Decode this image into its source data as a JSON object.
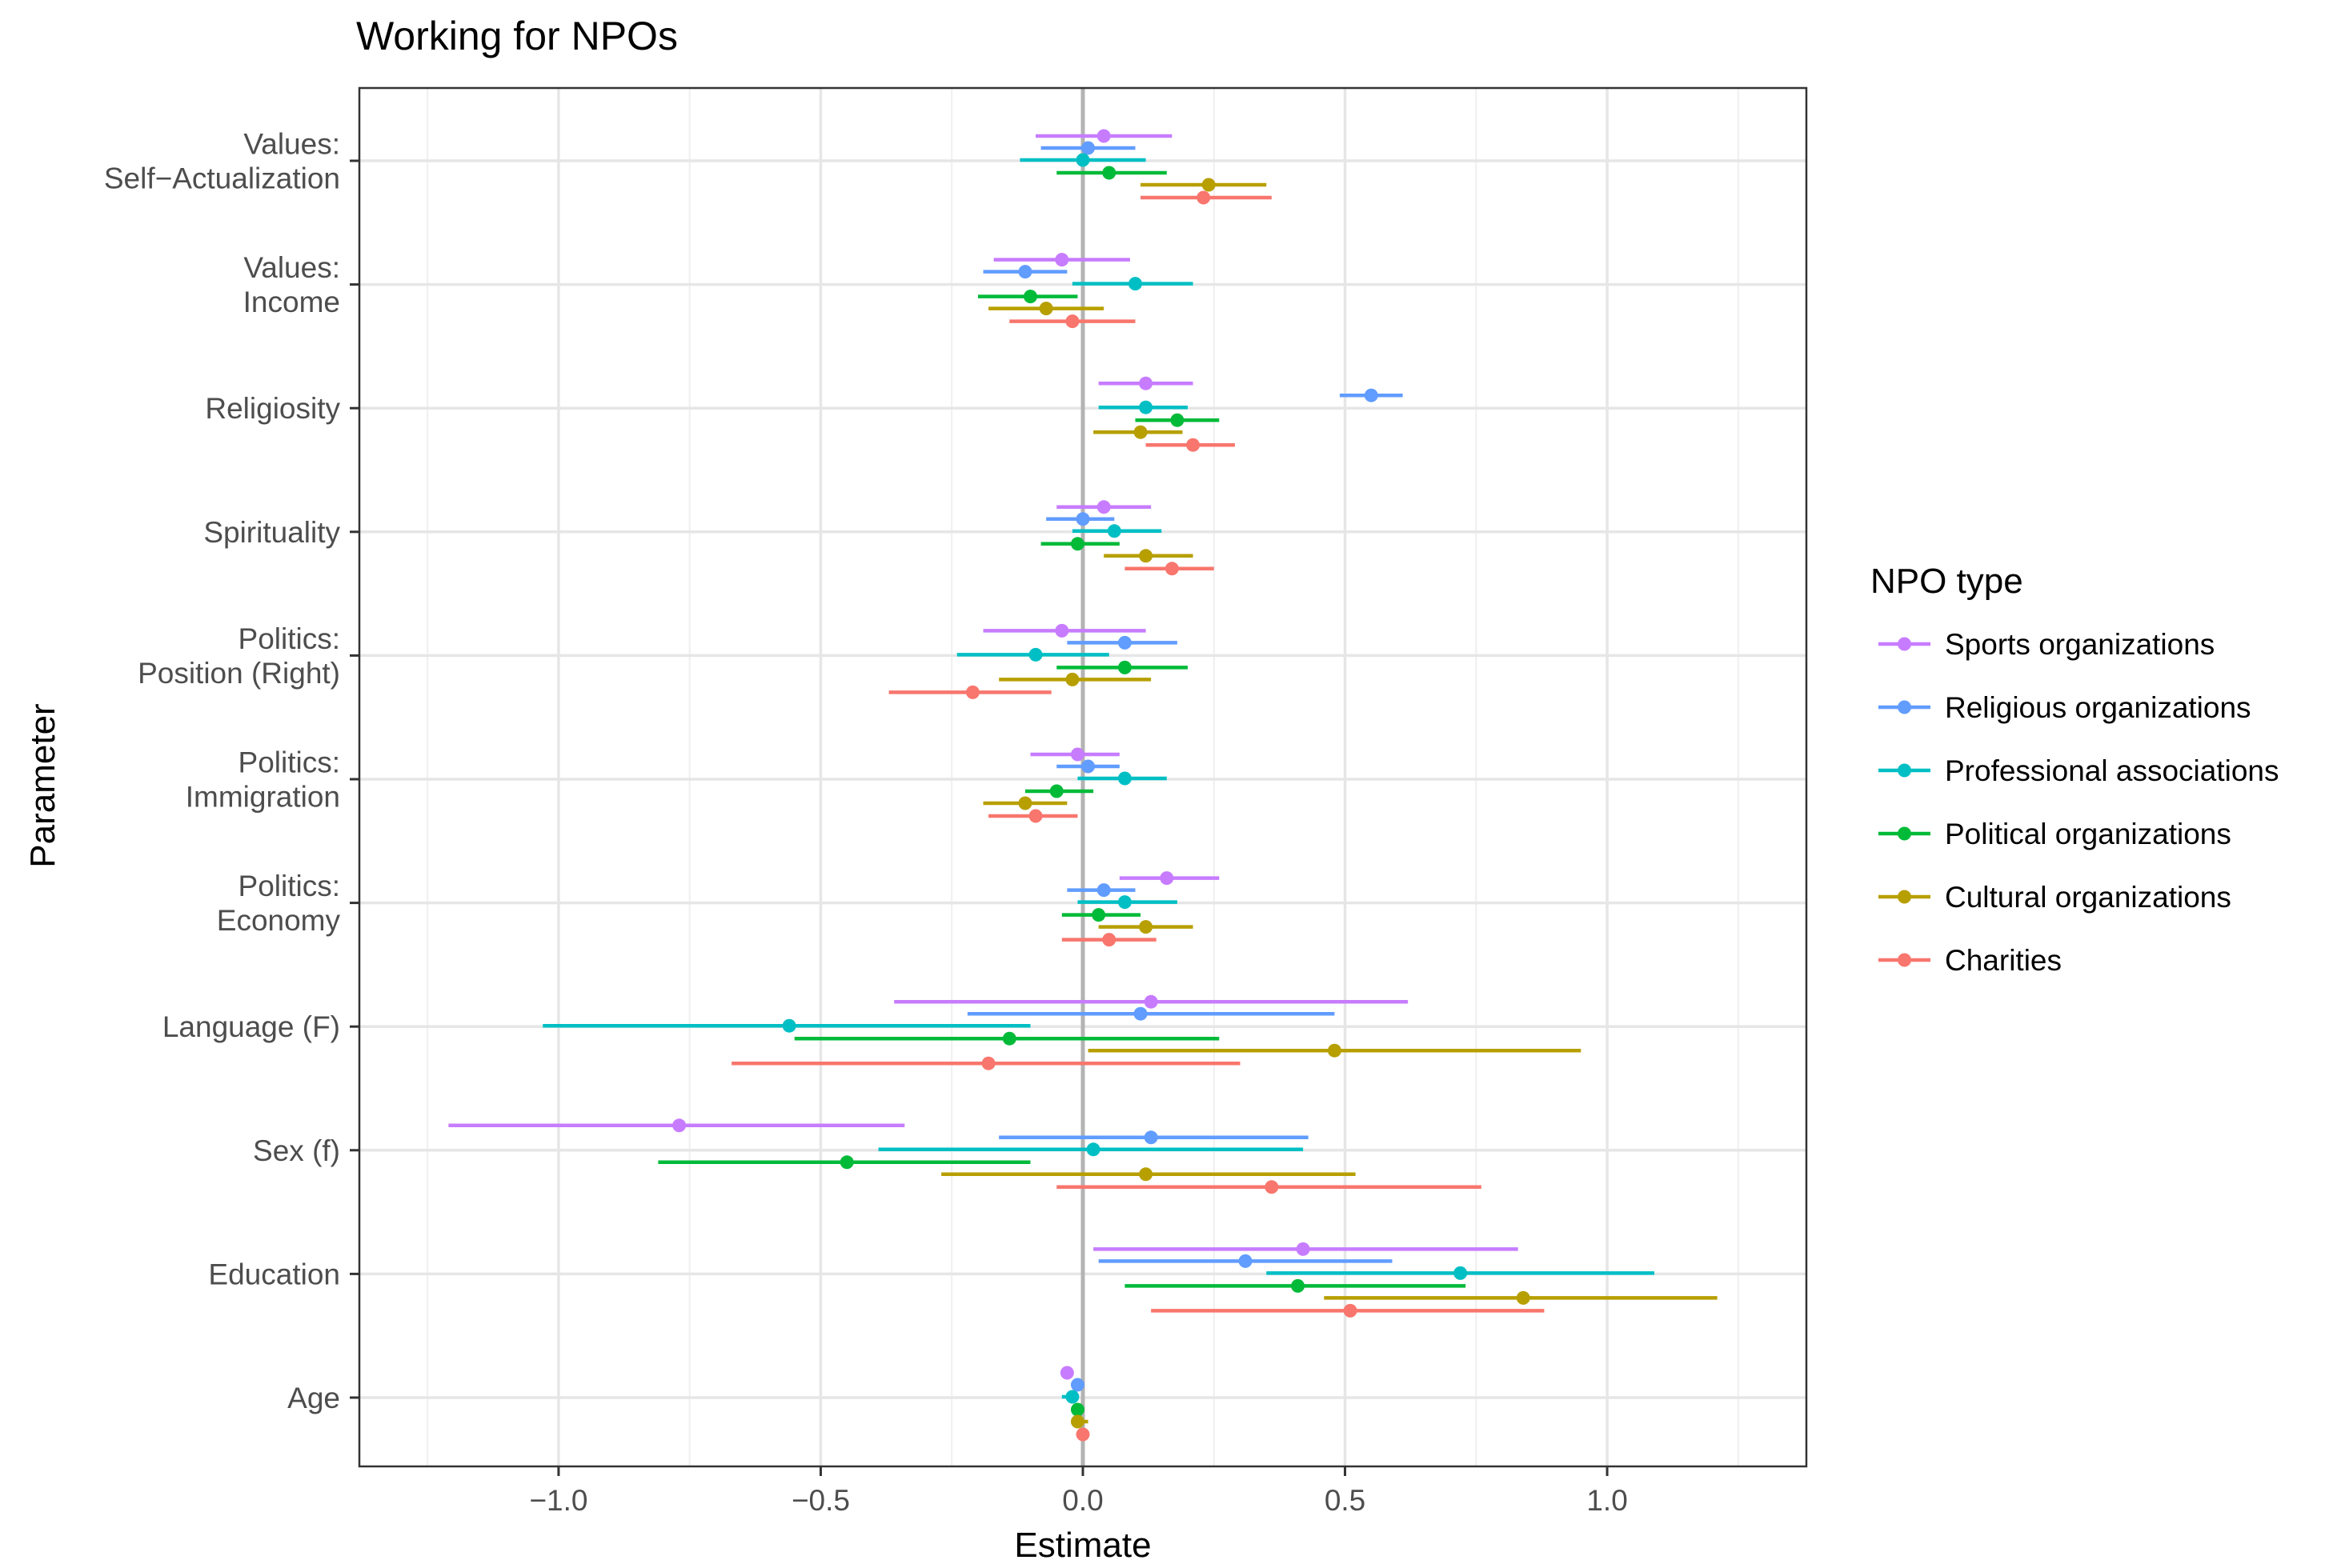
{
  "chart_data": {
    "type": "dot-whisker",
    "title": "Working for NPOs",
    "xlabel": "Estimate",
    "ylabel": "Parameter",
    "xlim": [
      -1.38,
      1.38
    ],
    "x_ticks": [
      -1.0,
      -0.5,
      0.0,
      0.5,
      1.0
    ],
    "x_tick_labels": [
      "−1.0",
      "−0.5",
      "0.0",
      "0.5",
      "1.0"
    ],
    "reference_line_x": 0,
    "grid": true,
    "legend_title": "NPO type",
    "legend_position": "right",
    "parameters": [
      {
        "lines": [
          "Values:",
          "Self−Actualization"
        ]
      },
      {
        "lines": [
          "Values:",
          "Income"
        ]
      },
      {
        "lines": [
          "Religiosity"
        ]
      },
      {
        "lines": [
          "Spirituality"
        ]
      },
      {
        "lines": [
          "Politics:",
          "Position (Right)"
        ]
      },
      {
        "lines": [
          "Politics:",
          "Immigration"
        ]
      },
      {
        "lines": [
          "Politics:",
          "Economy"
        ]
      },
      {
        "lines": [
          "Language (F)"
        ]
      },
      {
        "lines": [
          "Sex (f)"
        ]
      },
      {
        "lines": [
          "Education"
        ]
      },
      {
        "lines": [
          "Age"
        ]
      }
    ],
    "series": [
      {
        "name": "Sports organizations",
        "color": "#C77CFF",
        "estimates": [
          0.04,
          -0.04,
          0.12,
          0.04,
          -0.04,
          -0.01,
          0.16,
          0.13,
          -0.77,
          0.42,
          -0.03
        ],
        "lower": [
          -0.09,
          -0.17,
          0.03,
          -0.05,
          -0.19,
          -0.1,
          0.07,
          -0.36,
          -1.21,
          0.02,
          -0.04
        ],
        "upper": [
          0.17,
          0.09,
          0.21,
          0.13,
          0.12,
          0.07,
          0.26,
          0.62,
          -0.34,
          0.83,
          -0.02
        ]
      },
      {
        "name": "Religious organizations",
        "color": "#619CFF",
        "estimates": [
          0.01,
          -0.11,
          0.55,
          0.0,
          0.08,
          0.01,
          0.04,
          0.11,
          0.13,
          0.31,
          -0.01
        ],
        "lower": [
          -0.08,
          -0.19,
          0.49,
          -0.07,
          -0.03,
          -0.05,
          -0.03,
          -0.22,
          -0.16,
          0.03,
          -0.02
        ],
        "upper": [
          0.1,
          -0.03,
          0.61,
          0.06,
          0.18,
          0.07,
          0.1,
          0.48,
          0.43,
          0.59,
          0.0
        ]
      },
      {
        "name": "Professional associations",
        "color": "#00BFC4",
        "estimates": [
          0.0,
          0.1,
          0.12,
          0.06,
          -0.09,
          0.08,
          0.08,
          -0.56,
          0.02,
          0.72,
          -0.02
        ],
        "lower": [
          -0.12,
          -0.02,
          0.03,
          -0.02,
          -0.24,
          -0.01,
          -0.01,
          -1.03,
          -0.39,
          0.35,
          -0.04
        ],
        "upper": [
          0.12,
          0.21,
          0.2,
          0.15,
          0.05,
          0.16,
          0.18,
          -0.1,
          0.42,
          1.09,
          -0.01
        ]
      },
      {
        "name": "Political organizations",
        "color": "#00BA38",
        "estimates": [
          0.05,
          -0.1,
          0.18,
          -0.01,
          0.08,
          -0.05,
          0.03,
          -0.14,
          -0.45,
          0.41,
          -0.01
        ],
        "lower": [
          -0.05,
          -0.2,
          0.1,
          -0.08,
          -0.05,
          -0.11,
          -0.04,
          -0.55,
          -0.81,
          0.08,
          -0.02
        ],
        "upper": [
          0.16,
          -0.01,
          0.26,
          0.07,
          0.2,
          0.02,
          0.11,
          0.26,
          -0.1,
          0.73,
          0.0
        ]
      },
      {
        "name": "Cultural organizations",
        "color": "#B79F00",
        "estimates": [
          0.24,
          -0.07,
          0.11,
          0.12,
          -0.02,
          -0.11,
          0.12,
          0.48,
          0.12,
          0.84,
          -0.01
        ],
        "lower": [
          0.11,
          -0.18,
          0.02,
          0.04,
          -0.16,
          -0.19,
          0.03,
          0.01,
          -0.27,
          0.46,
          -0.02
        ],
        "upper": [
          0.35,
          0.04,
          0.19,
          0.21,
          0.13,
          -0.03,
          0.21,
          0.95,
          0.52,
          1.21,
          0.01
        ]
      },
      {
        "name": "Charities",
        "color": "#F8766D",
        "estimates": [
          0.23,
          -0.02,
          0.21,
          0.17,
          -0.21,
          -0.09,
          0.05,
          -0.18,
          0.36,
          0.51,
          0.0
        ],
        "lower": [
          0.11,
          -0.14,
          0.12,
          0.08,
          -0.37,
          -0.18,
          -0.04,
          -0.67,
          -0.05,
          0.13,
          -0.01
        ],
        "upper": [
          0.36,
          0.1,
          0.29,
          0.25,
          -0.06,
          -0.01,
          0.14,
          0.3,
          0.76,
          0.88,
          0.01
        ]
      }
    ]
  }
}
